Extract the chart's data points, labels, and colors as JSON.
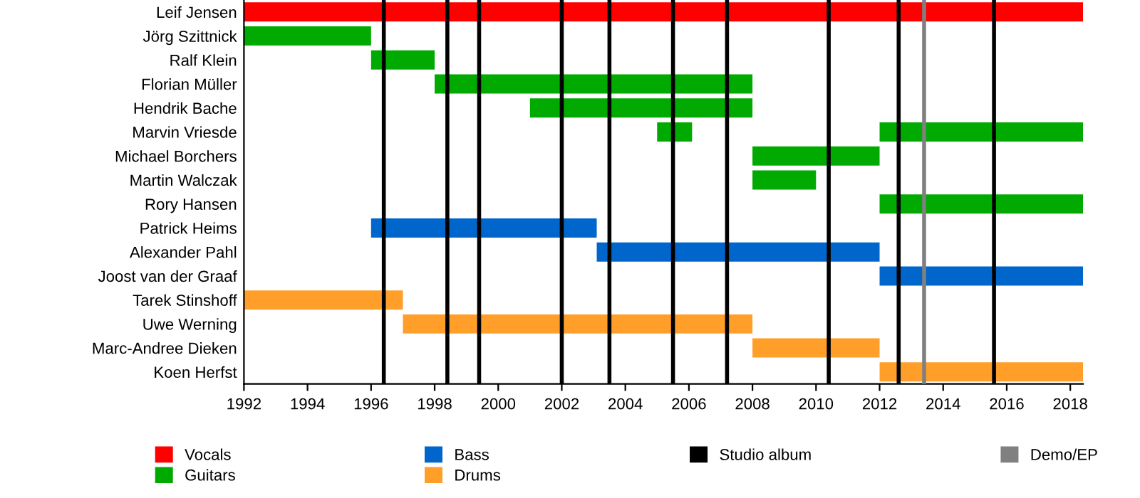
{
  "chart_data": {
    "type": "bar",
    "orientation": "horizontal",
    "categories": [
      "Leif Jensen",
      "Jörg Szittnick",
      "Ralf Klein",
      "Florian Müller",
      "Hendrik Bache",
      "Marvin Vriesde",
      "Michael Borchers",
      "Martin Walczak",
      "Rory Hansen",
      "Patrick Heims",
      "Alexander Pahl",
      "Joost van der Graaf",
      "Tarek Stinshoff",
      "Uwe Werning",
      "Marc-Andree Dieken",
      "Koen Herfst"
    ],
    "series": [
      {
        "name": "Vocals",
        "color": "#ff0000",
        "base": [
          1992,
          null,
          null,
          null,
          null,
          null,
          null,
          null,
          null,
          null,
          null,
          null,
          null,
          null,
          null,
          null
        ],
        "values": [
          26.4,
          null,
          null,
          null,
          null,
          null,
          null,
          null,
          null,
          null,
          null,
          null,
          null,
          null,
          null,
          null
        ]
      },
      {
        "name": "Guitars",
        "color": "#00aa00",
        "base": [
          null,
          1992,
          1996,
          1998,
          2001,
          2005,
          2008,
          2008,
          2012,
          null,
          null,
          null,
          null,
          null,
          null,
          null
        ],
        "values": [
          null,
          4,
          2,
          10,
          7,
          1.1,
          4,
          2,
          6.4,
          null,
          null,
          null,
          null,
          null,
          null,
          null
        ]
      },
      {
        "color": "#00aa00",
        "base": [
          null,
          null,
          null,
          null,
          null,
          2012,
          null,
          null,
          null,
          null,
          null,
          null,
          null,
          null,
          null,
          null
        ],
        "values": [
          null,
          null,
          null,
          null,
          null,
          6.4,
          null,
          null,
          null,
          null,
          null,
          null,
          null,
          null,
          null,
          null
        ]
      },
      {
        "name": "Bass",
        "color": "#0066cc",
        "base": [
          null,
          null,
          null,
          null,
          null,
          null,
          null,
          null,
          null,
          1996,
          2003.1,
          2012,
          null,
          null,
          null,
          null
        ],
        "values": [
          null,
          null,
          null,
          null,
          null,
          null,
          null,
          null,
          null,
          7.1,
          8.9,
          6.4,
          null,
          null,
          null,
          null
        ]
      },
      {
        "name": "Drums",
        "color": "#ff9f2a",
        "base": [
          null,
          null,
          null,
          null,
          null,
          null,
          null,
          null,
          null,
          null,
          null,
          null,
          1992,
          1997,
          2008,
          2012
        ],
        "values": [
          null,
          null,
          null,
          null,
          null,
          null,
          null,
          null,
          null,
          null,
          null,
          null,
          5,
          11,
          4,
          6.4
        ]
      }
    ],
    "ref_lines": [
      {
        "axis": "x",
        "value": 1996.4,
        "label": "Studio album",
        "color": "#000000"
      },
      {
        "axis": "x",
        "value": 1998.4,
        "color": "#000000"
      },
      {
        "axis": "x",
        "value": 1999.4,
        "color": "#000000"
      },
      {
        "axis": "x",
        "value": 2002.0,
        "color": "#000000"
      },
      {
        "axis": "x",
        "value": 2003.5,
        "color": "#000000"
      },
      {
        "axis": "x",
        "value": 2005.5,
        "color": "#000000"
      },
      {
        "axis": "x",
        "value": 2007.2,
        "color": "#000000"
      },
      {
        "axis": "x",
        "value": 2010.4,
        "color": "#000000"
      },
      {
        "axis": "x",
        "value": 2012.6,
        "color": "#000000"
      },
      {
        "axis": "x",
        "value": 2013.4,
        "label": "Demo/EP",
        "color": "#808080"
      },
      {
        "axis": "x",
        "value": 2015.6,
        "color": "#000000"
      }
    ],
    "xlim": [
      1992,
      2018.4
    ],
    "xticks": [
      1992,
      1994,
      1996,
      1998,
      2000,
      2002,
      2004,
      2006,
      2008,
      2010,
      2012,
      2014,
      2016,
      2018
    ],
    "grid": false,
    "legend": "bottom"
  }
}
